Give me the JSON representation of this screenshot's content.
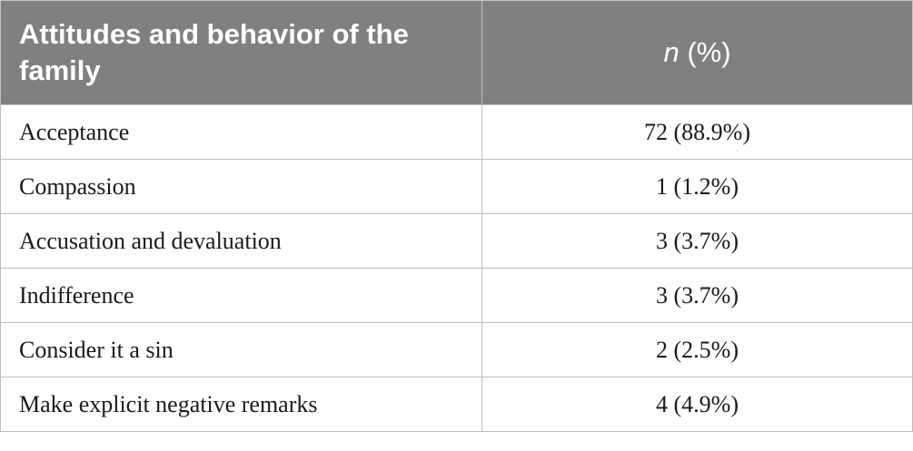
{
  "table": {
    "header": {
      "col1": "Attitudes and behavior of the family",
      "col2_italic": "n",
      "col2_rest": " (%)"
    },
    "rows": [
      {
        "label": "Acceptance",
        "value": "72 (88.9%)"
      },
      {
        "label": "Compassion",
        "value": "1 (1.2%)"
      },
      {
        "label": "Accusation and devaluation",
        "value": "3 (3.7%)"
      },
      {
        "label": "Indifference",
        "value": "3 (3.7%)"
      },
      {
        "label": "Consider it a sin",
        "value": "2 (2.5%)"
      },
      {
        "label": "Make explicit negative remarks",
        "value": "4 (4.9%)"
      }
    ]
  }
}
